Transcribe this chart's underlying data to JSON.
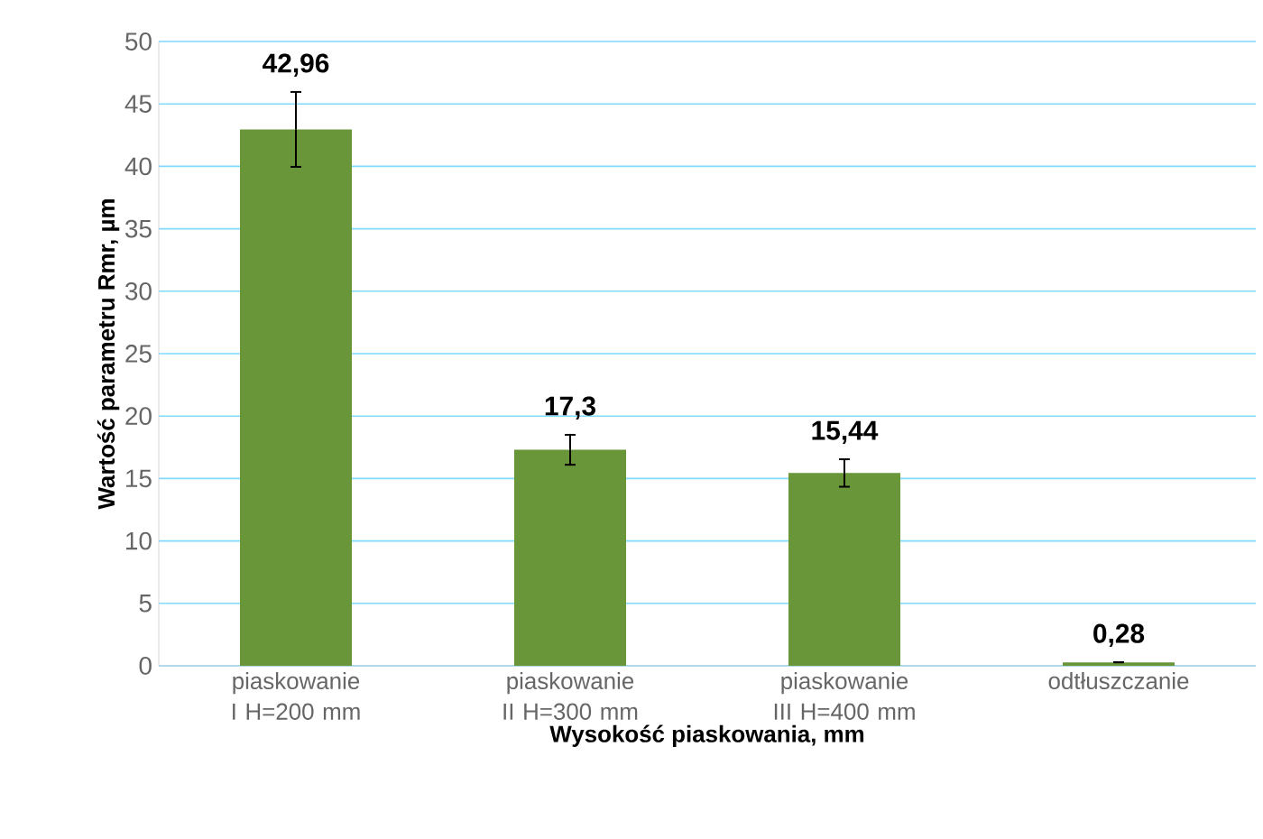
{
  "chart_data": {
    "type": "bar",
    "xlabel": "Wysokość piaskowania, mm",
    "ylabel": "Wartość parametru Rmr, µm",
    "categories": [
      "piaskowanie I H=200 mm",
      "piaskowanie II H=300 mm",
      "piaskowanie III H=400 mm",
      "odtłuszczanie"
    ],
    "values": [
      42.96,
      17.3,
      15.44,
      0.28
    ],
    "errors": [
      3,
      1.2,
      1.1,
      null
    ],
    "value_labels": [
      "42,96",
      "17,3",
      "15,44",
      "0,28"
    ],
    "color": "#6a963a",
    "ylim": [
      0,
      50
    ],
    "yticks": [
      0,
      5,
      10,
      15,
      20,
      25,
      30,
      35,
      40,
      45,
      50
    ],
    "grid": "y"
  }
}
